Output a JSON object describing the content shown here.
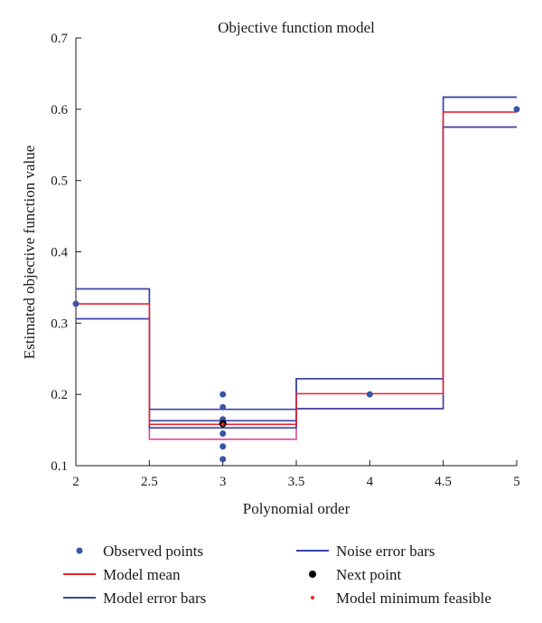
{
  "chart_data": {
    "type": "line",
    "title": "Objective function model",
    "xlabel": "Polynomial order",
    "ylabel": "Estimated objective function value",
    "xlim": [
      2,
      5
    ],
    "ylim": [
      0.1,
      0.7
    ],
    "xticks": [
      "2",
      "2.5",
      "3",
      "3.5",
      "4",
      "4.5",
      "5"
    ],
    "yticks": [
      "0.1",
      "0.2",
      "0.3",
      "0.4",
      "0.5",
      "0.6",
      "0.7"
    ],
    "grid": false,
    "legend_position": "bottom",
    "steps": [
      {
        "x0": 2.0,
        "x1": 2.5,
        "mean": 0.327,
        "model_upper": 0.348,
        "model_lower": 0.306,
        "noise_upper": 0.348,
        "noise_lower": 0.306
      },
      {
        "x0": 2.5,
        "x1": 3.5,
        "mean": 0.158,
        "model_upper": 0.179,
        "model_lower": 0.137,
        "noise_upper": 0.163,
        "noise_lower": 0.153
      },
      {
        "x0": 3.5,
        "x1": 4.5,
        "mean": 0.201,
        "model_upper": 0.222,
        "model_lower": 0.18,
        "noise_upper": 0.222,
        "noise_lower": 0.18
      },
      {
        "x0": 4.5,
        "x1": 5.0,
        "mean": 0.596,
        "model_upper": 0.617,
        "model_lower": 0.575,
        "noise_upper": 0.617,
        "noise_lower": 0.575
      }
    ],
    "series": [
      {
        "name": "Observed points",
        "color": "#3a55a6",
        "points": [
          [
            2,
            0.327
          ],
          [
            3,
            0.2
          ],
          [
            3,
            0.182
          ],
          [
            3,
            0.165
          ],
          [
            3,
            0.145
          ],
          [
            3,
            0.127
          ],
          [
            3,
            0.109
          ],
          [
            4,
            0.2
          ],
          [
            5,
            0.6
          ]
        ]
      },
      {
        "name": "Model mean",
        "color": "#e8262c"
      },
      {
        "name": "Model error bars",
        "color": "#3a45a8"
      },
      {
        "name": "Noise error bars",
        "color": "#3a45a8"
      },
      {
        "name": "Next point",
        "color": "#000000",
        "points": [
          [
            3,
            0.159
          ]
        ]
      },
      {
        "name": "Model minimum feasible",
        "color": "#e8262c",
        "points": [
          [
            3,
            0.158
          ]
        ]
      }
    ],
    "colors": {
      "model_lower_line": "#e0479e",
      "axis": "#1a1a1a"
    }
  }
}
